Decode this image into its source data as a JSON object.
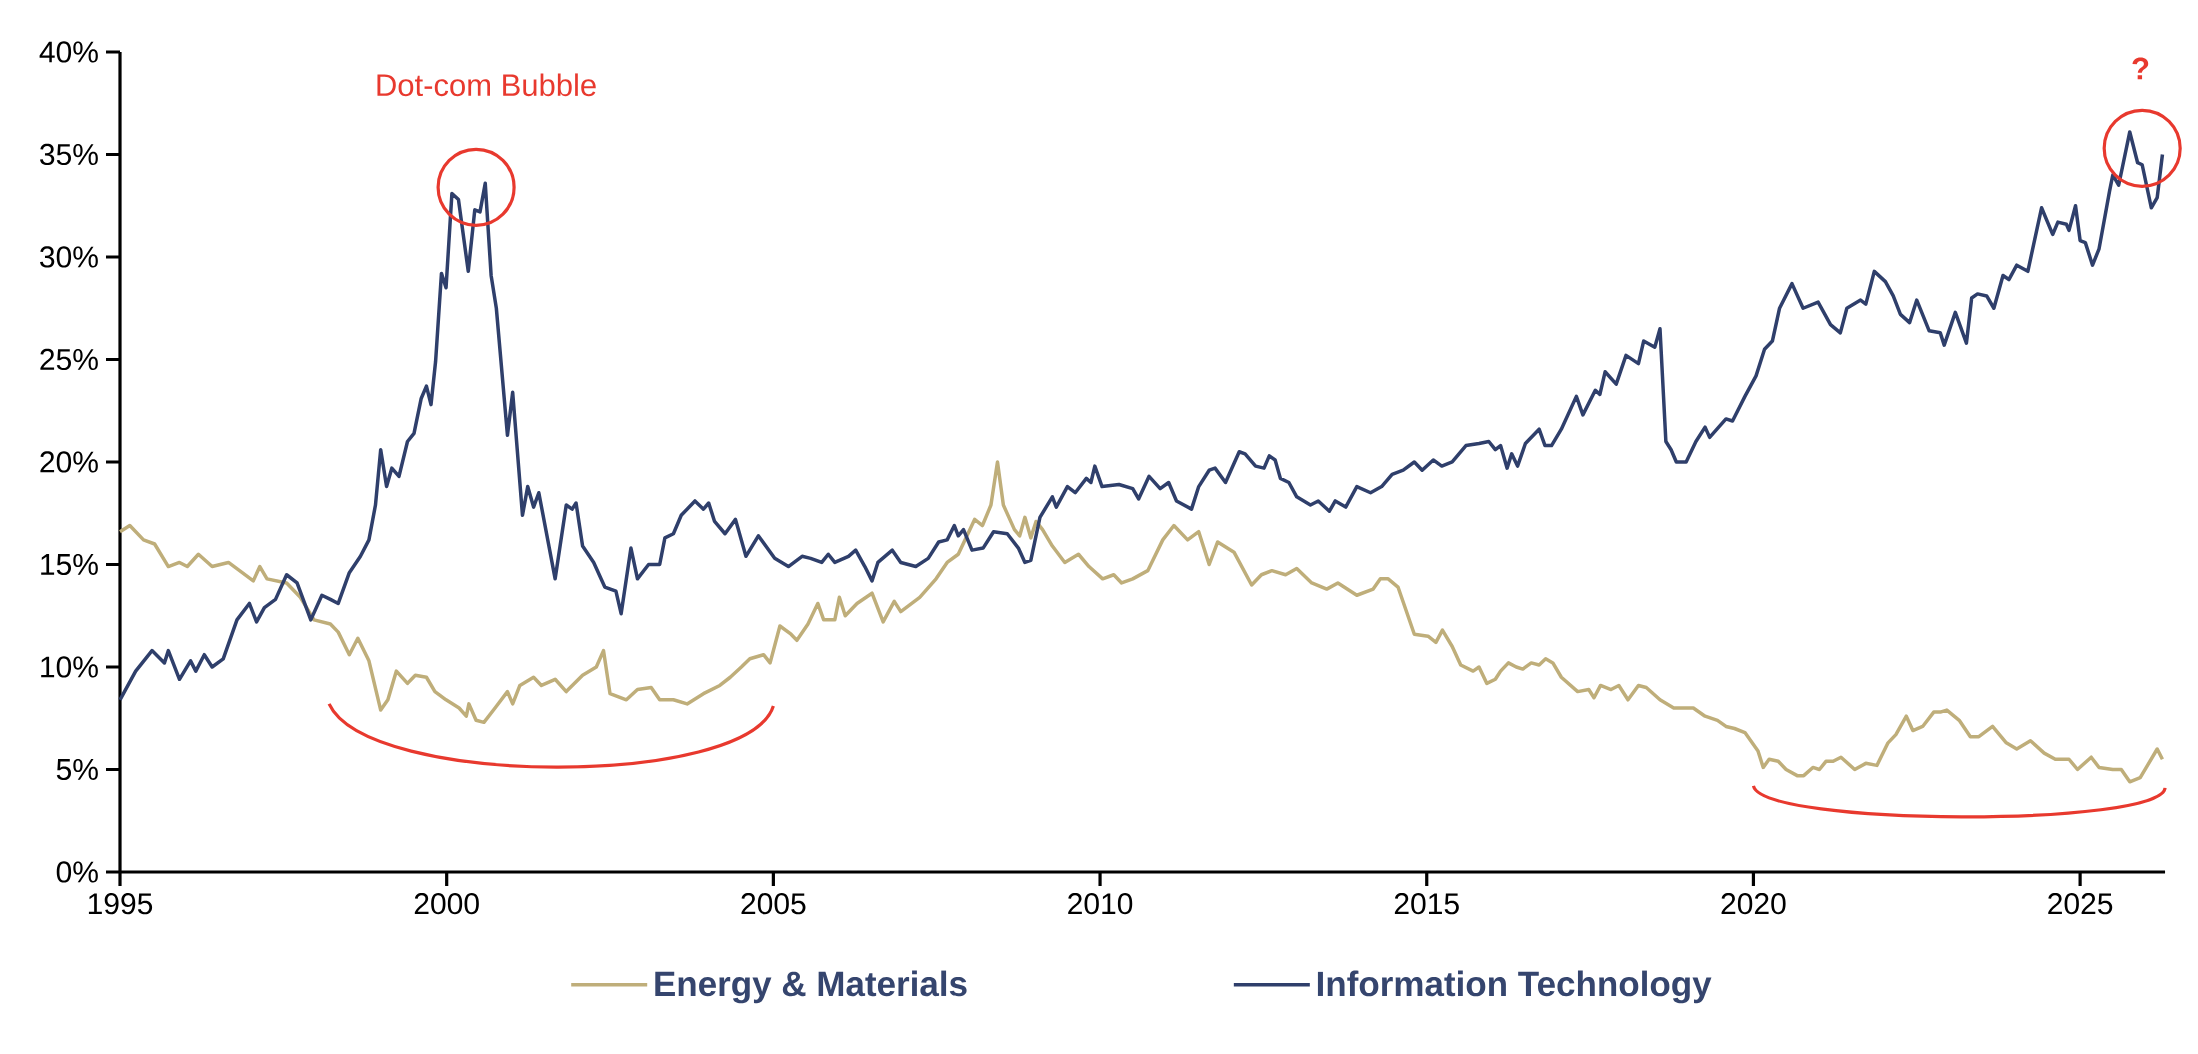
{
  "chart_data": {
    "type": "line",
    "xlim": [
      1995,
      2026.3
    ],
    "xticks": [
      1995,
      2000,
      2005,
      2010,
      2015,
      2020,
      2025
    ],
    "ylim": [
      0,
      40
    ],
    "yticks": [
      {
        "value": 0,
        "label": "0%"
      },
      {
        "value": 5,
        "label": "5%"
      },
      {
        "value": 10,
        "label": "10%"
      },
      {
        "value": 15,
        "label": "15%"
      },
      {
        "value": 20,
        "label": "20%"
      },
      {
        "value": 25,
        "label": "25%"
      },
      {
        "value": 30,
        "label": "30%"
      },
      {
        "value": 35,
        "label": "35%"
      },
      {
        "value": 40,
        "label": "40%"
      }
    ],
    "legend": "bottom",
    "annotations": [
      "Dot-com Bubble",
      "?"
    ],
    "series": [
      {
        "name": "Energy & Materials",
        "color": "#bfae7a",
        "x": [
          1995.0,
          1995.15,
          1995.36,
          1995.53,
          1995.74,
          1995.91,
          1996.03,
          1996.2,
          1996.41,
          1996.66,
          1996.83,
          1997.04,
          1997.14,
          1997.25,
          1997.55,
          1997.76,
          1997.97,
          1998.22,
          1998.34,
          1998.51,
          1998.64,
          1998.81,
          1998.99,
          1999.1,
          1999.23,
          1999.4,
          1999.52,
          1999.69,
          1999.82,
          1999.99,
          2000.19,
          2000.3,
          2000.34,
          2000.45,
          2000.57,
          2000.74,
          2000.93,
          2001.01,
          2001.12,
          2001.33,
          2001.45,
          2001.66,
          2001.83,
          2002.08,
          2002.29,
          2002.4,
          2002.5,
          2002.75,
          2002.92,
          2003.13,
          2003.26,
          2003.47,
          2003.68,
          2003.93,
          2004.18,
          2004.34,
          2004.51,
          2004.64,
          2004.85,
          2004.95,
          2005.1,
          2005.27,
          2005.36,
          2005.53,
          2005.68,
          2005.77,
          2005.94,
          2006.01,
          2006.1,
          2006.28,
          2006.51,
          2006.68,
          2006.85,
          2006.95,
          2007.24,
          2007.49,
          2007.66,
          2007.83,
          2008.08,
          2008.2,
          2008.33,
          2008.43,
          2008.52,
          2008.69,
          2008.77,
          2008.85,
          2008.94,
          2009.02,
          2009.12,
          2009.27,
          2009.46,
          2009.67,
          2009.83,
          2010.04,
          2010.21,
          2010.33,
          2010.5,
          2010.73,
          2010.96,
          2011.13,
          2011.34,
          2011.51,
          2011.67,
          2011.8,
          2012.05,
          2012.32,
          2012.47,
          2012.63,
          2012.84,
          2013.01,
          2013.24,
          2013.47,
          2013.64,
          2013.93,
          2014.18,
          2014.29,
          2014.41,
          2014.56,
          2014.81,
          2015.02,
          2015.14,
          2015.24,
          2015.39,
          2015.52,
          2015.71,
          2015.8,
          2015.92,
          2016.05,
          2016.13,
          2016.25,
          2016.37,
          2016.47,
          2016.6,
          2016.72,
          2016.82,
          2016.93,
          2017.06,
          2017.31,
          2017.48,
          2017.56,
          2017.66,
          2017.82,
          2017.94,
          2018.08,
          2018.24,
          2018.36,
          2018.57,
          2018.78,
          2019.08,
          2019.26,
          2019.45,
          2019.58,
          2019.71,
          2019.87,
          2020.07,
          2020.15,
          2020.24,
          2020.38,
          2020.5,
          2020.67,
          2020.77,
          2020.91,
          2021.01,
          2021.11,
          2021.22,
          2021.34,
          2021.55,
          2021.72,
          2021.89,
          2022.06,
          2022.18,
          2022.34,
          2022.44,
          2022.59,
          2022.76,
          2022.86,
          2022.96,
          2023.15,
          2023.32,
          2023.45,
          2023.66,
          2023.87,
          2024.03,
          2024.24,
          2024.45,
          2024.62,
          2024.83,
          2024.96,
          2025.17,
          2025.29,
          2025.5,
          2025.63,
          2025.76,
          2025.92,
          2026.18,
          2026.26
        ],
        "values": [
          16.6,
          16.9,
          16.2,
          16.0,
          14.9,
          15.1,
          14.9,
          15.5,
          14.9,
          15.1,
          14.7,
          14.2,
          14.9,
          14.3,
          14.1,
          13.4,
          12.3,
          12.1,
          11.7,
          10.6,
          11.4,
          10.3,
          7.9,
          8.4,
          9.8,
          9.2,
          9.6,
          9.5,
          8.8,
          8.4,
          8.0,
          7.6,
          8.2,
          7.4,
          7.3,
          8.0,
          8.8,
          8.2,
          9.1,
          9.5,
          9.1,
          9.4,
          8.8,
          9.6,
          10.0,
          10.8,
          8.7,
          8.4,
          8.9,
          9.0,
          8.4,
          8.4,
          8.2,
          8.7,
          9.1,
          9.5,
          10.0,
          10.4,
          10.6,
          10.2,
          12.0,
          11.6,
          11.3,
          12.1,
          13.1,
          12.3,
          12.3,
          13.4,
          12.5,
          13.1,
          13.6,
          12.2,
          13.2,
          12.7,
          13.4,
          14.3,
          15.1,
          15.5,
          17.2,
          16.9,
          17.9,
          20.0,
          17.9,
          16.7,
          16.4,
          17.3,
          16.3,
          17.1,
          16.7,
          15.9,
          15.1,
          15.5,
          14.9,
          14.3,
          14.5,
          14.1,
          14.3,
          14.7,
          16.2,
          16.9,
          16.2,
          16.6,
          15.0,
          16.1,
          15.6,
          14.0,
          14.5,
          14.7,
          14.5,
          14.8,
          14.1,
          13.8,
          14.1,
          13.5,
          13.8,
          14.3,
          14.3,
          13.9,
          11.6,
          11.5,
          11.2,
          11.8,
          11.0,
          10.1,
          9.8,
          10.0,
          9.2,
          9.4,
          9.8,
          10.2,
          10.0,
          9.9,
          10.2,
          10.1,
          10.4,
          10.2,
          9.5,
          8.8,
          8.9,
          8.5,
          9.1,
          8.9,
          9.1,
          8.4,
          9.1,
          9.0,
          8.4,
          8.0,
          8.0,
          7.6,
          7.4,
          7.1,
          7.0,
          6.8,
          5.9,
          5.1,
          5.5,
          5.4,
          5.0,
          4.7,
          4.7,
          5.1,
          5.0,
          5.4,
          5.4,
          5.6,
          5.0,
          5.3,
          5.2,
          6.3,
          6.7,
          7.6,
          6.9,
          7.1,
          7.8,
          7.8,
          7.9,
          7.4,
          6.6,
          6.6,
          7.1,
          6.3,
          6.0,
          6.4,
          5.8,
          5.5,
          5.5,
          5.0,
          5.6,
          5.1,
          5.0,
          5.0,
          4.4,
          4.6,
          6.0,
          5.5
        ]
      },
      {
        "name": "Information Technology",
        "color": "#2f3f6b",
        "x": [
          1995.0,
          1995.24,
          1995.49,
          1995.68,
          1995.74,
          1995.91,
          1996.08,
          1996.16,
          1996.29,
          1996.41,
          1996.58,
          1996.79,
          1996.98,
          1997.09,
          1997.21,
          1997.38,
          1997.55,
          1997.71,
          1997.92,
          1998.09,
          1998.22,
          1998.34,
          1998.51,
          1998.68,
          1998.81,
          1998.91,
          1998.99,
          1999.08,
          1999.16,
          1999.27,
          1999.4,
          1999.5,
          1999.61,
          1999.69,
          1999.76,
          1999.83,
          1999.92,
          1999.99,
          2000.08,
          2000.18,
          2000.33,
          2000.43,
          2000.51,
          2000.59,
          2000.68,
          2000.76,
          2000.93,
          2001.01,
          2001.16,
          2001.24,
          2001.33,
          2001.41,
          2001.66,
          2001.83,
          2001.92,
          2001.98,
          2002.08,
          2002.25,
          2002.42,
          2002.59,
          2002.67,
          2002.82,
          2002.92,
          2003.09,
          2003.26,
          2003.34,
          2003.47,
          2003.59,
          2003.8,
          2003.93,
          2004.01,
          2004.1,
          2004.26,
          2004.42,
          2004.58,
          2004.77,
          2005.02,
          2005.23,
          2005.44,
          2005.57,
          2005.74,
          2005.84,
          2005.94,
          2006.15,
          2006.26,
          2006.4,
          2006.51,
          2006.6,
          2006.82,
          2006.95,
          2007.18,
          2007.37,
          2007.53,
          2007.66,
          2007.77,
          2007.83,
          2007.91,
          2008.04,
          2008.21,
          2008.37,
          2008.58,
          2008.75,
          2008.85,
          2008.94,
          2009.08,
          2009.27,
          2009.33,
          2009.5,
          2009.62,
          2009.79,
          2009.86,
          2009.92,
          2010.03,
          2010.29,
          2010.5,
          2010.59,
          2010.75,
          2010.92,
          2011.05,
          2011.17,
          2011.4,
          2011.51,
          2011.67,
          2011.76,
          2011.92,
          2012.13,
          2012.22,
          2012.38,
          2012.51,
          2012.59,
          2012.68,
          2012.76,
          2012.89,
          2013.01,
          2013.22,
          2013.34,
          2013.51,
          2013.6,
          2013.76,
          2013.93,
          2014.14,
          2014.31,
          2014.47,
          2014.64,
          2014.81,
          2014.93,
          2015.1,
          2015.23,
          2015.39,
          2015.6,
          2015.8,
          2015.95,
          2016.05,
          2016.13,
          2016.23,
          2016.3,
          2016.39,
          2016.51,
          2016.72,
          2016.81,
          2016.91,
          2017.06,
          2017.29,
          2017.39,
          2017.58,
          2017.65,
          2017.73,
          2017.9,
          2018.05,
          2018.24,
          2018.32,
          2018.49,
          2018.57,
          2018.66,
          2018.74,
          2018.82,
          2018.97,
          2019.12,
          2019.26,
          2019.33,
          2019.58,
          2019.68,
          2019.87,
          2020.04,
          2020.17,
          2020.29,
          2020.4,
          2020.59,
          2020.76,
          2020.99,
          2021.18,
          2021.33,
          2021.43,
          2021.64,
          2021.72,
          2021.85,
          2022.02,
          2022.14,
          2022.25,
          2022.39,
          2022.5,
          2022.69,
          2022.86,
          2022.92,
          2023.09,
          2023.26,
          2023.34,
          2023.43,
          2023.57,
          2023.68,
          2023.82,
          2023.91,
          2024.03,
          2024.2,
          2024.41,
          2024.58,
          2024.66,
          2024.79,
          2024.83,
          2024.93,
          2025.0,
          2025.08,
          2025.19,
          2025.29,
          2025.45,
          2025.5,
          2025.59,
          2025.76,
          2025.88,
          2025.95,
          2026.09,
          2026.18,
          2026.26
        ],
        "values": [
          8.4,
          9.8,
          10.8,
          10.2,
          10.8,
          9.4,
          10.3,
          9.8,
          10.6,
          10.0,
          10.4,
          12.3,
          13.1,
          12.2,
          12.9,
          13.3,
          14.5,
          14.1,
          12.3,
          13.5,
          13.3,
          13.1,
          14.6,
          15.4,
          16.2,
          17.9,
          20.6,
          18.8,
          19.7,
          19.3,
          21.0,
          21.4,
          23.1,
          23.7,
          22.8,
          24.9,
          29.2,
          28.5,
          33.1,
          32.8,
          29.3,
          32.3,
          32.2,
          33.6,
          29.1,
          27.5,
          21.3,
          23.4,
          17.4,
          18.8,
          17.8,
          18.5,
          14.3,
          17.9,
          17.7,
          18.0,
          15.9,
          15.1,
          13.9,
          13.7,
          12.6,
          15.8,
          14.3,
          15.0,
          15.0,
          16.3,
          16.5,
          17.4,
          18.1,
          17.7,
          18.0,
          17.1,
          16.5,
          17.2,
          15.4,
          16.4,
          15.3,
          14.9,
          15.4,
          15.3,
          15.1,
          15.5,
          15.1,
          15.4,
          15.7,
          14.9,
          14.2,
          15.1,
          15.7,
          15.1,
          14.9,
          15.3,
          16.1,
          16.2,
          16.9,
          16.4,
          16.7,
          15.7,
          15.8,
          16.6,
          16.5,
          15.8,
          15.1,
          15.2,
          17.3,
          18.3,
          17.8,
          18.8,
          18.5,
          19.2,
          19.0,
          19.8,
          18.8,
          18.9,
          18.7,
          18.2,
          19.3,
          18.7,
          19.0,
          18.1,
          17.7,
          18.8,
          19.6,
          19.7,
          19.0,
          20.5,
          20.4,
          19.8,
          19.7,
          20.3,
          20.1,
          19.2,
          19.0,
          18.3,
          17.9,
          18.1,
          17.6,
          18.1,
          17.8,
          18.8,
          18.5,
          18.8,
          19.4,
          19.6,
          20.0,
          19.6,
          20.1,
          19.8,
          20.0,
          20.8,
          20.9,
          21.0,
          20.6,
          20.8,
          19.7,
          20.4,
          19.8,
          20.9,
          21.6,
          20.8,
          20.8,
          21.6,
          23.2,
          22.3,
          23.5,
          23.3,
          24.4,
          23.8,
          25.2,
          24.8,
          25.9,
          25.6,
          26.5,
          21.0,
          20.6,
          20.0,
          20.0,
          21.0,
          21.7,
          21.2,
          22.1,
          22.0,
          23.2,
          24.2,
          25.5,
          25.9,
          27.5,
          28.7,
          27.5,
          27.8,
          26.7,
          26.3,
          27.5,
          27.9,
          27.7,
          29.3,
          28.8,
          28.1,
          27.2,
          26.8,
          27.9,
          26.4,
          26.3,
          25.7,
          27.3,
          25.8,
          28.0,
          28.2,
          28.1,
          27.5,
          29.1,
          28.9,
          29.6,
          29.3,
          32.4,
          31.1,
          31.7,
          31.6,
          31.3,
          32.5,
          30.8,
          30.7,
          29.6,
          30.4,
          33.2,
          34.0,
          33.5,
          36.1,
          34.6,
          34.5,
          32.4,
          32.9,
          35.0
        ]
      }
    ]
  }
}
